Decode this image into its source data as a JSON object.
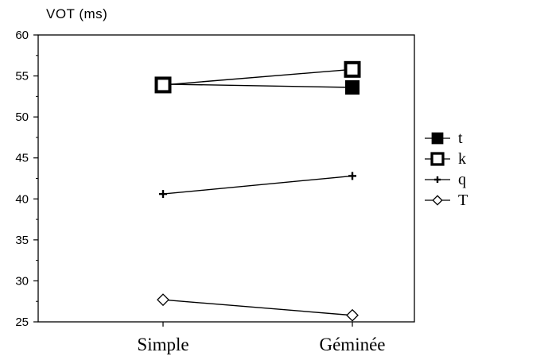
{
  "chart_data": {
    "type": "line",
    "ylabel": "VOT (ms)",
    "xlabel": "",
    "categories": [
      "Simple",
      "Géminée"
    ],
    "ylim": [
      25,
      60
    ],
    "yticks": [
      25,
      30,
      35,
      40,
      45,
      50,
      55,
      60
    ],
    "legend_position": "right",
    "series": [
      {
        "name": "t",
        "marker": "filled-square",
        "values": [
          54.0,
          53.6
        ]
      },
      {
        "name": "k",
        "marker": "open-square",
        "values": [
          53.9,
          55.8
        ]
      },
      {
        "name": "q",
        "marker": "plus",
        "values": [
          40.6,
          42.8
        ]
      },
      {
        "name": "T",
        "marker": "open-diamond",
        "values": [
          27.7,
          25.8
        ]
      }
    ]
  }
}
